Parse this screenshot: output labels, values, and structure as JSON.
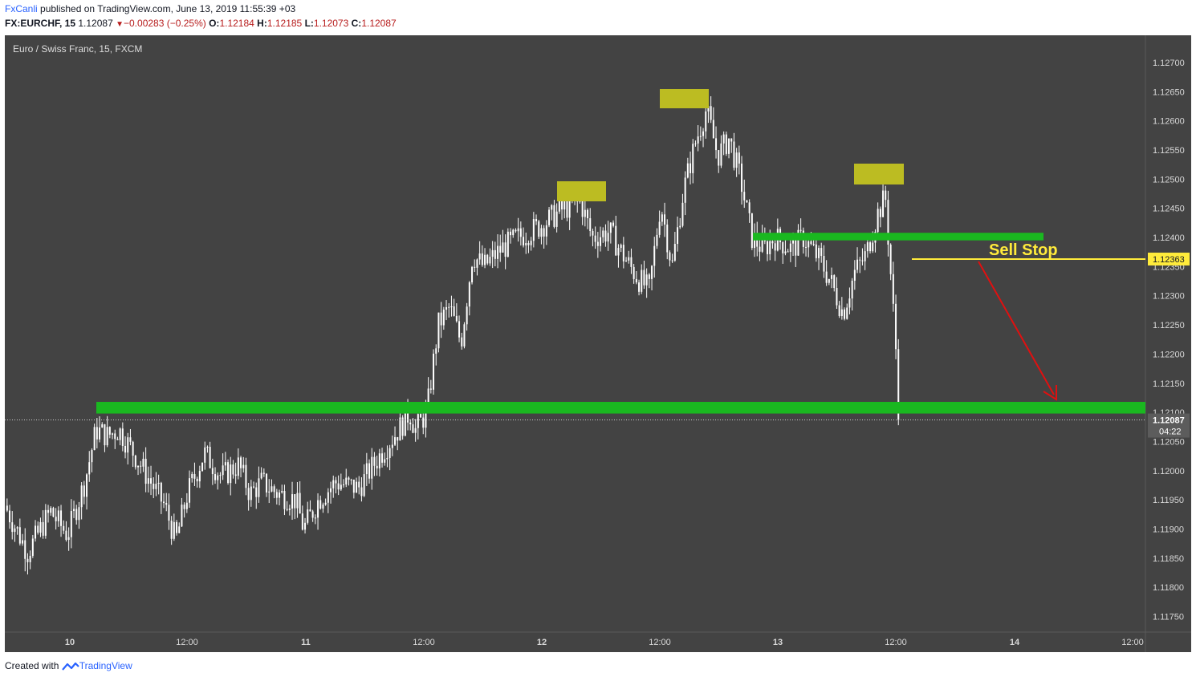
{
  "header": {
    "user": "FxCanli",
    "published_text": "published on TradingView.com, June 13, 2019 11:55:39 +03",
    "symbol": "FX:EURCHF, 15",
    "last": "1.12087",
    "change": "−0.00283 (−0.25%)",
    "open_label": "O:",
    "open": "1.12184",
    "high_label": "H:",
    "high": "1.12185",
    "low_label": "L:",
    "low": "1.12073",
    "close_label": "C:",
    "close": "1.12087"
  },
  "footer": {
    "created_with": "Created with",
    "brand": "TradingView"
  },
  "colors": {
    "background": "#434343",
    "candles": "#ffffff",
    "green_zone": "#1ab820",
    "yellow_box": "#bcbc22",
    "sell_stop": "#ffeb3b",
    "arrow": "#e01010"
  },
  "chart_data": {
    "type": "candlestick",
    "title": "Euro / Swiss Franc, 15, FXCM",
    "xlabel": "",
    "ylabel": "",
    "ylim": [
      1.1172,
      1.1273
    ],
    "y_ticks": [
      "1.12700",
      "1.12650",
      "1.12600",
      "1.12550",
      "1.12500",
      "1.12450",
      "1.12400",
      "1.12350",
      "1.12300",
      "1.12250",
      "1.12200",
      "1.12150",
      "1.12100",
      "1.12050",
      "1.12000",
      "1.11950",
      "1.11900",
      "1.11850",
      "1.11800",
      "1.11750"
    ],
    "x_ticks": [
      "10",
      "12:00",
      "11",
      "12:00",
      "12",
      "12:00",
      "13",
      "12:00",
      "14",
      "12:00"
    ],
    "price_path": [
      [
        0.0,
        1.1194
      ],
      [
        0.02,
        1.1186
      ],
      [
        0.04,
        1.1193
      ],
      [
        0.055,
        1.1189
      ],
      [
        0.07,
        1.1198
      ],
      [
        0.08,
        1.1207
      ],
      [
        0.09,
        1.1206
      ],
      [
        0.1,
        1.1207
      ],
      [
        0.11,
        1.1204
      ],
      [
        0.125,
        1.1199
      ],
      [
        0.14,
        1.1194
      ],
      [
        0.15,
        1.1188
      ],
      [
        0.16,
        1.1196
      ],
      [
        0.175,
        1.1203
      ],
      [
        0.19,
        1.1199
      ],
      [
        0.205,
        1.1201
      ],
      [
        0.215,
        1.1196
      ],
      [
        0.225,
        1.1198
      ],
      [
        0.24,
        1.1196
      ],
      [
        0.255,
        1.1195
      ],
      [
        0.262,
        1.119
      ],
      [
        0.275,
        1.1195
      ],
      [
        0.29,
        1.1198
      ],
      [
        0.31,
        1.1197
      ],
      [
        0.33,
        1.1203
      ],
      [
        0.345,
        1.1207
      ],
      [
        0.355,
        1.121
      ],
      [
        0.36,
        1.1207
      ],
      [
        0.37,
        1.121
      ],
      [
        0.38,
        1.1225
      ],
      [
        0.39,
        1.1228
      ],
      [
        0.4,
        1.1222
      ],
      [
        0.41,
        1.1237
      ],
      [
        0.42,
        1.1235
      ],
      [
        0.435,
        1.1238
      ],
      [
        0.45,
        1.124
      ],
      [
        0.47,
        1.1242
      ],
      [
        0.49,
        1.1245
      ],
      [
        0.505,
        1.1246
      ],
      [
        0.515,
        1.124
      ],
      [
        0.53,
        1.1241
      ],
      [
        0.545,
        1.1236
      ],
      [
        0.555,
        1.1233
      ],
      [
        0.565,
        1.1231
      ],
      [
        0.575,
        1.1246
      ],
      [
        0.585,
        1.1235
      ],
      [
        0.595,
        1.1248
      ],
      [
        0.605,
        1.1256
      ],
      [
        0.615,
        1.1262
      ],
      [
        0.625,
        1.1254
      ],
      [
        0.635,
        1.1257
      ],
      [
        0.645,
        1.125
      ],
      [
        0.655,
        1.124
      ],
      [
        0.665,
        1.1238
      ],
      [
        0.675,
        1.124
      ],
      [
        0.69,
        1.1238
      ],
      [
        0.7,
        1.124
      ],
      [
        0.715,
        1.1236
      ],
      [
        0.725,
        1.1232
      ],
      [
        0.735,
        1.1227
      ],
      [
        0.745,
        1.1234
      ],
      [
        0.755,
        1.1237
      ],
      [
        0.765,
        1.1244
      ],
      [
        0.772,
        1.1247
      ],
      [
        0.778,
        1.123
      ],
      [
        0.785,
        1.121
      ]
    ],
    "sell_stop_price": 1.12363,
    "current_price": 1.12087,
    "countdown": "04:22",
    "resistance_zone": [
      1.12395,
      1.12408
    ],
    "support_zone": [
      1.12098,
      1.12118
    ],
    "annotations": [
      {
        "text": "Sell Stop"
      }
    ]
  }
}
